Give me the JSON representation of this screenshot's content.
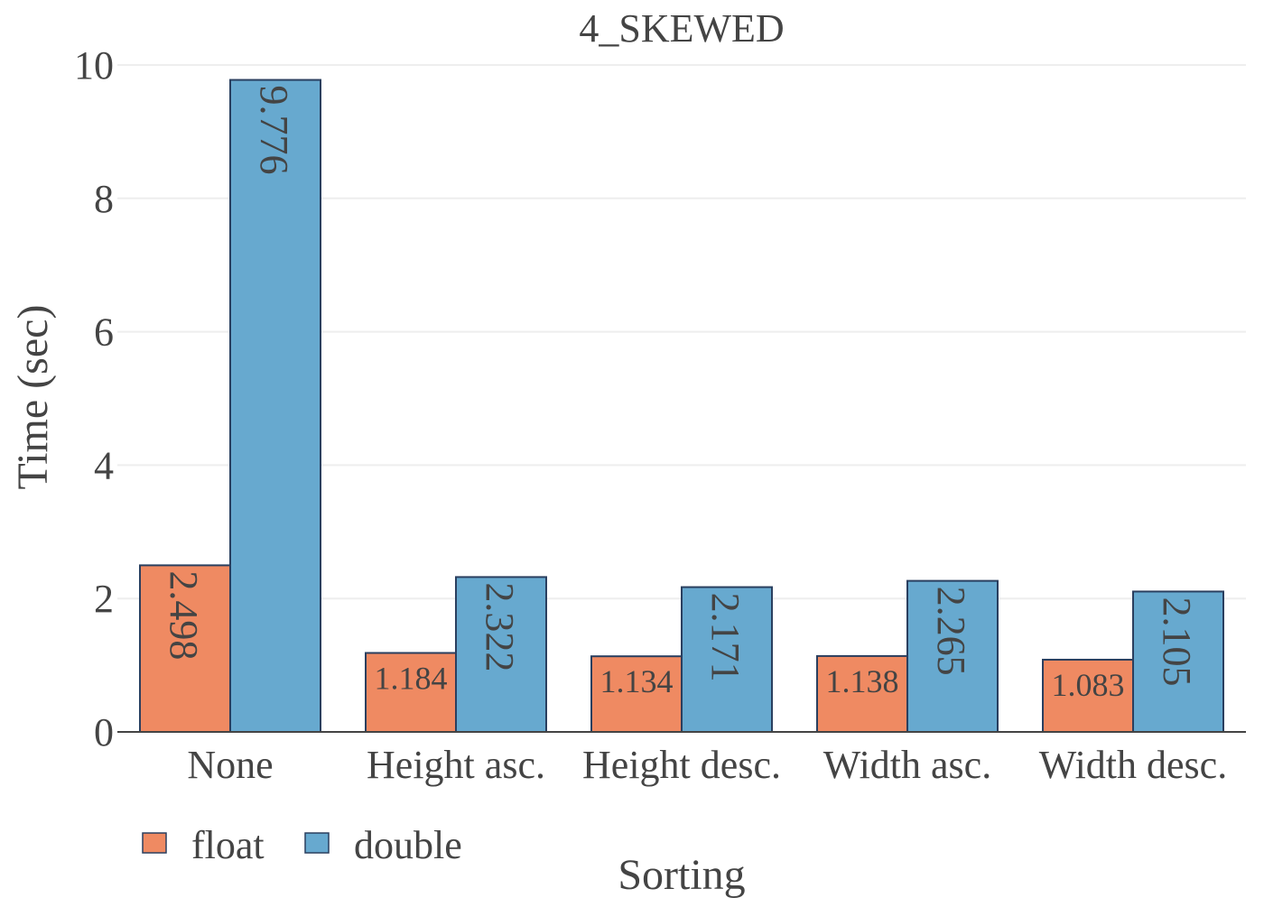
{
  "chart_data": {
    "type": "bar",
    "title": "4_SKEWED",
    "xlabel": "Sorting",
    "ylabel": "Time (sec)",
    "categories": [
      "None",
      "Height asc.",
      "Height desc.",
      "Width asc.",
      "Width desc."
    ],
    "series": [
      {
        "name": "float",
        "color": "#EF8A62",
        "values": [
          2.498,
          1.184,
          1.134,
          1.138,
          1.083
        ],
        "labels": [
          "2.498",
          "1.184",
          "1.134",
          "1.138",
          "1.083"
        ]
      },
      {
        "name": "double",
        "color": "#67A9CF",
        "values": [
          9.776,
          2.322,
          2.171,
          2.265,
          2.105
        ],
        "labels": [
          "9.776",
          "2.322",
          "2.171",
          "2.265",
          "2.105"
        ]
      }
    ],
    "ylim": [
      0,
      10
    ],
    "yticks": [
      0,
      2,
      4,
      6,
      8,
      10
    ],
    "grid": true,
    "legend_position": "bottom-left",
    "colors": {
      "text": "#444444",
      "grid": "#eeeeee",
      "axis": "#444444",
      "bar_outline": "#2a3f5f"
    }
  }
}
